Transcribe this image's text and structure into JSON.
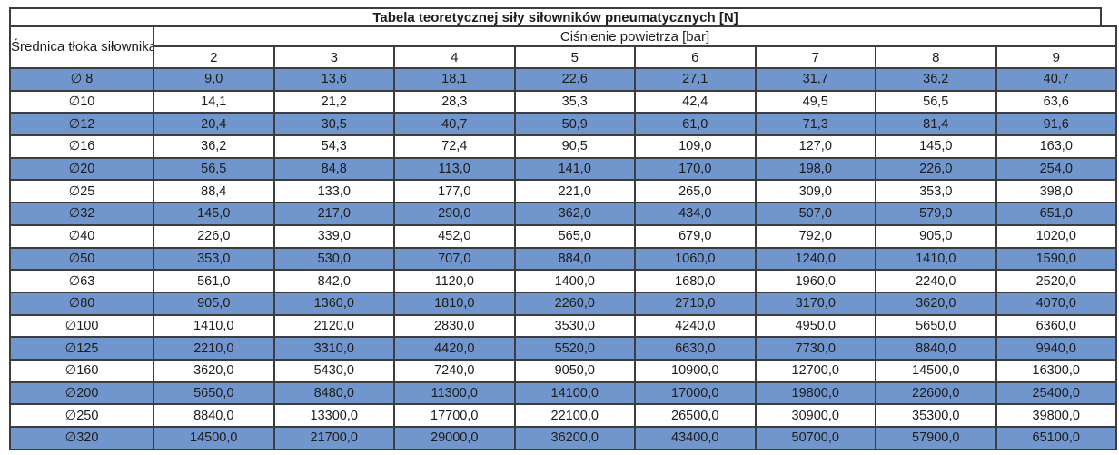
{
  "chart_data": {
    "type": "table",
    "title": "Tabela teoretycznej siły siłowników pneumatycznych [N]",
    "row_header": "Średnica tłoka siłownika",
    "col_group_header": "Ciśnienie powietrza [bar]",
    "pressure_columns": [
      "2",
      "3",
      "4",
      "5",
      "6",
      "7",
      "8",
      "9"
    ],
    "rows": [
      {
        "diameter": "∅ 8",
        "values": [
          "9,0",
          "13,6",
          "18,1",
          "22,6",
          "27,1",
          "31,7",
          "36,2",
          "40,7"
        ]
      },
      {
        "diameter": "∅10",
        "values": [
          "14,1",
          "21,2",
          "28,3",
          "35,3",
          "42,4",
          "49,5",
          "56,5",
          "63,6"
        ]
      },
      {
        "diameter": "∅12",
        "values": [
          "20,4",
          "30,5",
          "40,7",
          "50,9",
          "61,0",
          "71,3",
          "81,4",
          "91,6"
        ]
      },
      {
        "diameter": "∅16",
        "values": [
          "36,2",
          "54,3",
          "72,4",
          "90,5",
          "109,0",
          "127,0",
          "145,0",
          "163,0"
        ]
      },
      {
        "diameter": "∅20",
        "values": [
          "56,5",
          "84,8",
          "113,0",
          "141,0",
          "170,0",
          "198,0",
          "226,0",
          "254,0"
        ]
      },
      {
        "diameter": "∅25",
        "values": [
          "88,4",
          "133,0",
          "177,0",
          "221,0",
          "265,0",
          "309,0",
          "353,0",
          "398,0"
        ]
      },
      {
        "diameter": "∅32",
        "values": [
          "145,0",
          "217,0",
          "290,0",
          "362,0",
          "434,0",
          "507,0",
          "579,0",
          "651,0"
        ]
      },
      {
        "diameter": "∅40",
        "values": [
          "226,0",
          "339,0",
          "452,0",
          "565,0",
          "679,0",
          "792,0",
          "905,0",
          "1020,0"
        ]
      },
      {
        "diameter": "∅50",
        "values": [
          "353,0",
          "530,0",
          "707,0",
          "884,0",
          "1060,0",
          "1240,0",
          "1410,0",
          "1590,0"
        ]
      },
      {
        "diameter": "∅63",
        "values": [
          "561,0",
          "842,0",
          "1120,0",
          "1400,0",
          "1680,0",
          "1960,0",
          "2240,0",
          "2520,0"
        ]
      },
      {
        "diameter": "∅80",
        "values": [
          "905,0",
          "1360,0",
          "1810,0",
          "2260,0",
          "2710,0",
          "3170,0",
          "3620,0",
          "4070,0"
        ]
      },
      {
        "diameter": "∅100",
        "values": [
          "1410,0",
          "2120,0",
          "2830,0",
          "3530,0",
          "4240,0",
          "4950,0",
          "5650,0",
          "6360,0"
        ]
      },
      {
        "diameter": "∅125",
        "values": [
          "2210,0",
          "3310,0",
          "4420,0",
          "5520,0",
          "6630,0",
          "7730,0",
          "8840,0",
          "9940,0"
        ]
      },
      {
        "diameter": "∅160",
        "values": [
          "3620,0",
          "5430,0",
          "7240,0",
          "9050,0",
          "10900,0",
          "12700,0",
          "14500,0",
          "16300,0"
        ]
      },
      {
        "diameter": "∅200",
        "values": [
          "5650,0",
          "8480,0",
          "11300,0",
          "14100,0",
          "17000,0",
          "19800,0",
          "22600,0",
          "25400,0"
        ]
      },
      {
        "diameter": "∅250",
        "values": [
          "8840,0",
          "13300,0",
          "17700,0",
          "22100,0",
          "26500,0",
          "30900,0",
          "35300,0",
          "39800,0"
        ]
      },
      {
        "diameter": "∅320",
        "values": [
          "14500,0",
          "21700,0",
          "29000,0",
          "36200,0",
          "43400,0",
          "50700,0",
          "57900,0",
          "65100,0"
        ]
      }
    ],
    "layout_hints": {
      "striped_rows": "first data row highlighted, alternating",
      "grid": true
    }
  },
  "colors": {
    "row_highlight": "#7196cd",
    "border": "#3d3d3d",
    "text": "#1c1c1c",
    "background": "#ffffff"
  }
}
